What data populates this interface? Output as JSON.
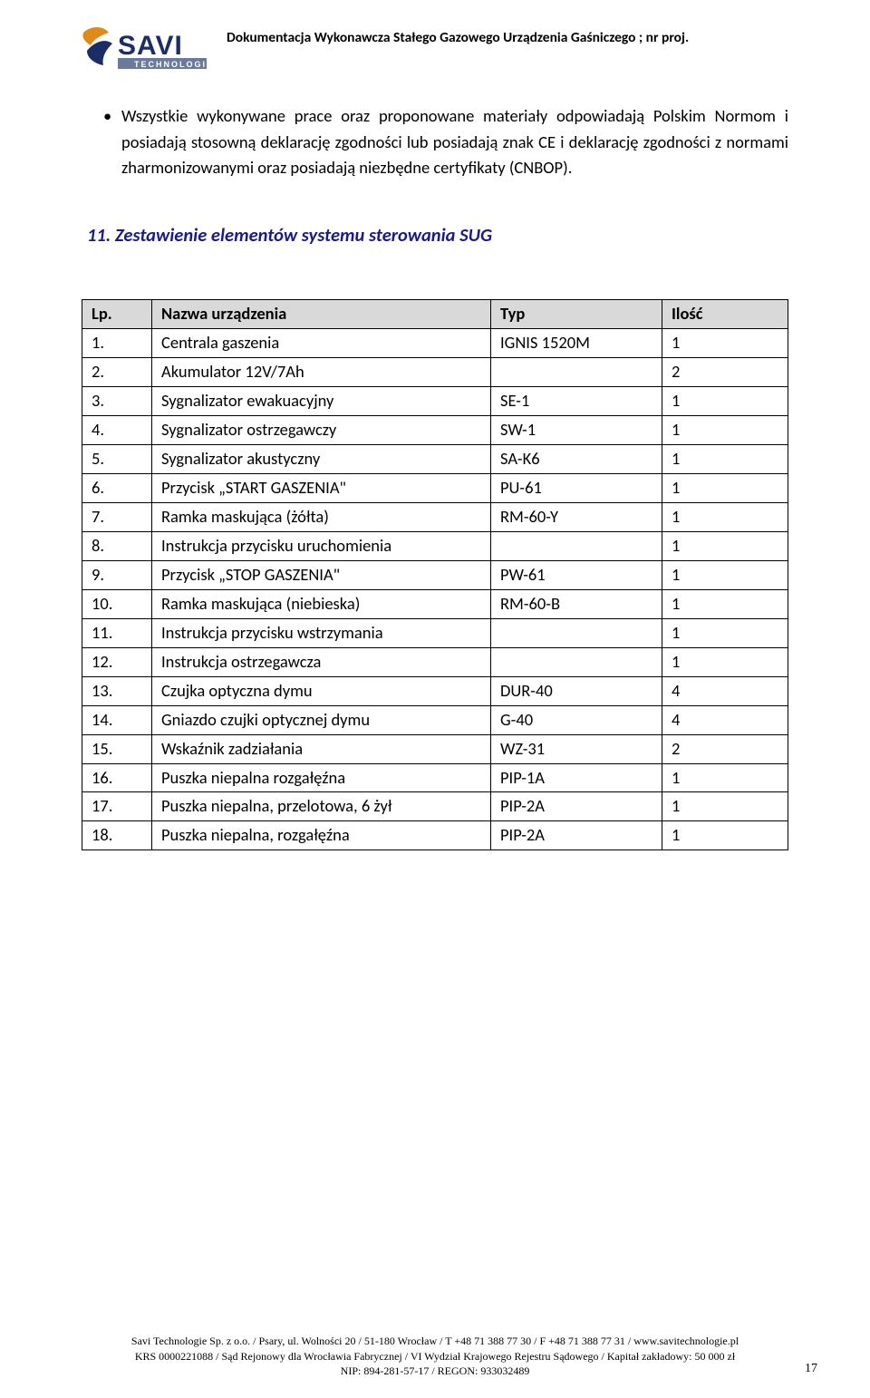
{
  "header": {
    "doc_title": "Dokumentacja Wykonawcza Stałego Gazowego Urządzenia Gaśniczego ; nr proj.",
    "logo": {
      "top_text": "SAVI",
      "sub_text": "TECHNOLOGIE",
      "accent_color": "#e08a1a",
      "main_color": "#1b2d66",
      "bar_color": "#6a7a9a"
    }
  },
  "bullet": {
    "text": "Wszystkie wykonywane prace oraz proponowane materiały odpowiadają Polskim Normom i posiadają stosowną deklarację zgodności lub posiadają znak CE i deklarację zgodności z normami zharmonizowanymi oraz posiadają niezbędne certyfikaty (CNBOP)."
  },
  "section": {
    "title": "11. Zestawienie elementów systemu sterowania SUG"
  },
  "table": {
    "headers": {
      "lp": "Lp.",
      "name": "Nazwa urządzenia",
      "type": "Typ",
      "qty": "Ilość"
    },
    "rows": [
      {
        "lp": "1.",
        "name": "Centrala gaszenia",
        "type": "IGNIS 1520M",
        "qty": "1"
      },
      {
        "lp": "2.",
        "name": "Akumulator 12V/7Ah",
        "type": "",
        "qty": "2"
      },
      {
        "lp": "3.",
        "name": "Sygnalizator ewakuacyjny",
        "type": "SE-1",
        "qty": "1"
      },
      {
        "lp": "4.",
        "name": "Sygnalizator ostrzegawczy",
        "type": "SW-1",
        "qty": "1"
      },
      {
        "lp": "5.",
        "name": "Sygnalizator akustyczny",
        "type": "SA-K6",
        "qty": "1"
      },
      {
        "lp": "6.",
        "name": "Przycisk „START GASZENIA\"",
        "type": "PU-61",
        "qty": "1"
      },
      {
        "lp": "7.",
        "name": "Ramka maskująca (żółta)",
        "type": "RM-60-Y",
        "qty": "1"
      },
      {
        "lp": "8.",
        "name": "Instrukcja przycisku uruchomienia",
        "type": "",
        "qty": "1"
      },
      {
        "lp": "9.",
        "name": "Przycisk „STOP GASZENIA\"",
        "type": "PW-61",
        "qty": "1"
      },
      {
        "lp": "10.",
        "name": "Ramka maskująca (niebieska)",
        "type": "RM-60-B",
        "qty": "1"
      },
      {
        "lp": "11.",
        "name": "Instrukcja przycisku wstrzymania",
        "type": "",
        "qty": "1"
      },
      {
        "lp": "12.",
        "name": "Instrukcja ostrzegawcza",
        "type": "",
        "qty": "1"
      },
      {
        "lp": "13.",
        "name": "Czujka optyczna dymu",
        "type": "DUR-40",
        "qty": "4"
      },
      {
        "lp": "14.",
        "name": "Gniazdo czujki optycznej dymu",
        "type": "G-40",
        "qty": "4"
      },
      {
        "lp": "15.",
        "name": "Wskaźnik zadziałania",
        "type": "WZ-31",
        "qty": "2"
      },
      {
        "lp": "16.",
        "name": "Puszka niepalna rozgałęźna",
        "type": "PIP-1A",
        "qty": "1"
      },
      {
        "lp": "17.",
        "name": "Puszka niepalna, przelotowa, 6 żył",
        "type": "PIP-2A",
        "qty": "1"
      },
      {
        "lp": "18.",
        "name": "Puszka niepalna, rozgałęźna",
        "type": "PIP-2A",
        "qty": "1"
      }
    ]
  },
  "footer": {
    "line1": "Savi Technologie Sp. z o.o.  /  Psary, ul. Wolności 20  /  51-180 Wrocław  /  T +48 71 388 77 30  /  F +48 71 388 77 31  /  www.savitechnologie.pl",
    "line2": "KRS 0000221088  /  Sąd Rejonowy dla Wrocławia Fabrycznej  /  VI Wydział Krajowego Rejestru Sądowego  /  Kapitał zakładowy: 50 000 zł",
    "line3": "NIP: 894-281-57-17  /  REGON: 933032489",
    "page_number": "17"
  }
}
